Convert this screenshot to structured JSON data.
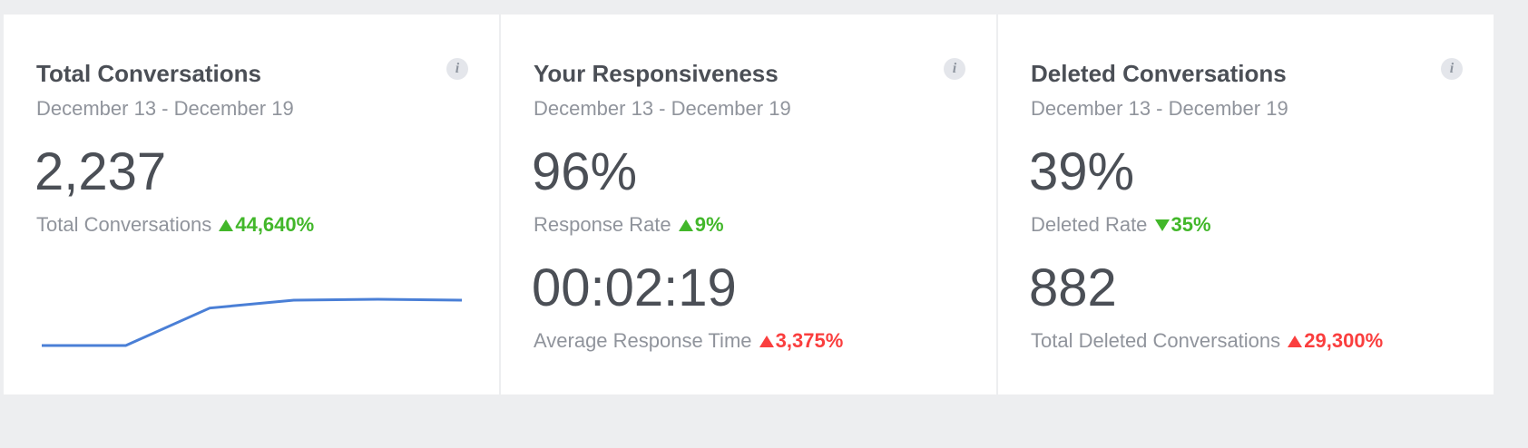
{
  "cards": [
    {
      "title": "Total Conversations",
      "date_range": "December 13 - December 19",
      "metrics": [
        {
          "value": "2,237",
          "label": "Total Conversations",
          "change": {
            "text": "44,640%",
            "direction": "up",
            "color": "#42b72a"
          }
        }
      ],
      "sparkline": {
        "values": [
          0,
          0,
          81,
          98,
          100,
          98
        ],
        "color": "#4a7fd6"
      }
    },
    {
      "title": "Your Responsiveness",
      "date_range": "December 13 - December 19",
      "metrics": [
        {
          "value": "96%",
          "label": "Response Rate",
          "change": {
            "text": "9%",
            "direction": "up",
            "color": "#42b72a"
          }
        },
        {
          "value": "00:02:19",
          "label": "Average Response Time",
          "change": {
            "text": "3,375%",
            "direction": "up",
            "color": "#fa3e3e"
          }
        }
      ]
    },
    {
      "title": "Deleted Conversations",
      "date_range": "December 13 - December 19",
      "metrics": [
        {
          "value": "39%",
          "label": "Deleted Rate",
          "change": {
            "text": "35%",
            "direction": "down",
            "color": "#42b72a"
          }
        },
        {
          "value": "882",
          "label": "Total Deleted Conversations",
          "change": {
            "text": "29,300%",
            "direction": "up",
            "color": "#fa3e3e"
          }
        }
      ]
    }
  ]
}
